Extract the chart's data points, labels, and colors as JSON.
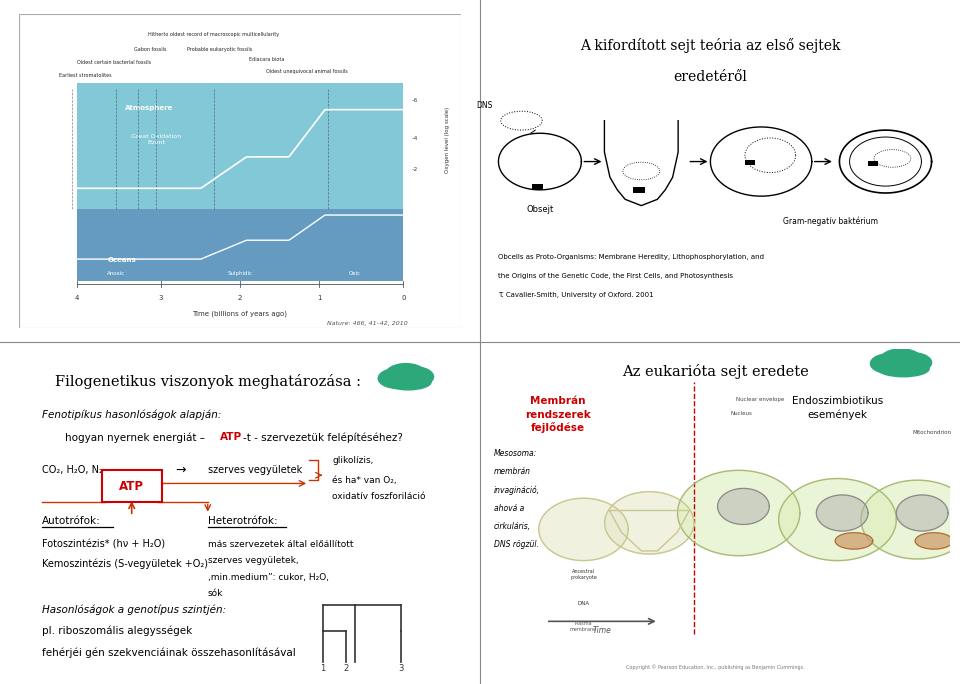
{
  "bg_color": "#ffffff",
  "divider_color": "#888888",
  "panel_bg": "#f5f0e8",
  "atm_color": "#6dbfcf",
  "ocean_color": "#4a8ab5",
  "nature_ref": "Nature: 466, 41–42, 2010",
  "tr_title1": "A kifordított sejt teória az első sejtek",
  "tr_title2": "eredetéről",
  "obsejt_label": "Obsejt",
  "gram_label": "Gram-negatív baktérium",
  "dns_label": "DNS",
  "ref_line1": "Obcells as Proto-Organisms: Membrane Heredity, Lithophosphorylation, and",
  "ref_line2": "the Origins of the Genetic Code, the First Cells, and Photosynthesis",
  "ref_line3": "T. Cavalier-Smith, University of Oxford. 2001",
  "bl_title": "Filogenetikus viszonyok meghatározása :",
  "bl_sub_italic": "Fenotipíkus hasonlóságok alapján:",
  "bl_sub_pre": "hogyan nyernek energiát – ",
  "bl_sub_atp": "ATP",
  "bl_sub_post": "-t - szervezetük felépítéséhez?",
  "co2_label": "CO₂, H₂O, N₂",
  "arrow_label": "→",
  "szerves_label": "szerves vegyületek",
  "glikolizis1": "glikolízis,",
  "glikolizis2": "és ha* van O₂,",
  "glikolizis3": "oxidatív foszforiláció",
  "atp_label": "ATP",
  "autotrofok_label": "Autotrófok:",
  "fotoszintezis_label": "Fotoszintézis* (hν + H₂O)",
  "kemoszintezis_label": "Kemoszintézis (S-vegyületek +O₂)",
  "heterotrofok_label": "Heterotrófok:",
  "heterotrofok1": "más szervezetek által előállított",
  "heterotrofok2": "szerves vegyületek,",
  "heterotrofok3": "‚min.medium”: cukor, H₂O,",
  "heterotrofok4": "sók",
  "hasonlosagok_italic": "Hasonlóságok a genotípus szintjén:",
  "hasonlosagok1": "pl. riboszomális alegysségek",
  "hasonlosagok2": "fehérjéi gén szekvenciáinak összehasonlításával",
  "cloud_color": "#2da87a",
  "br_title": "Az eukarióta sejt eredete",
  "membran1": "Membrán",
  "membran2": "rendszerek",
  "membran3": "fejlődése",
  "endoszimb1": "Endoszimbiotikus",
  "endoszimb2": "események",
  "membran_color": "#cc0000",
  "mesosoma1": "Mesosoma:",
  "mesosoma2": "membrán",
  "mesosoma3": "invagináció,",
  "mesosoma4": "ahová a",
  "mesosoma5": "cirkuláris,",
  "mesosoma6": "DNS rögzül.",
  "copyright": "Copyright © Pearson Education, Inc., publishing as Benjamin Cummings.",
  "red_color": "#cc0000",
  "arrow_color": "#cc3300"
}
